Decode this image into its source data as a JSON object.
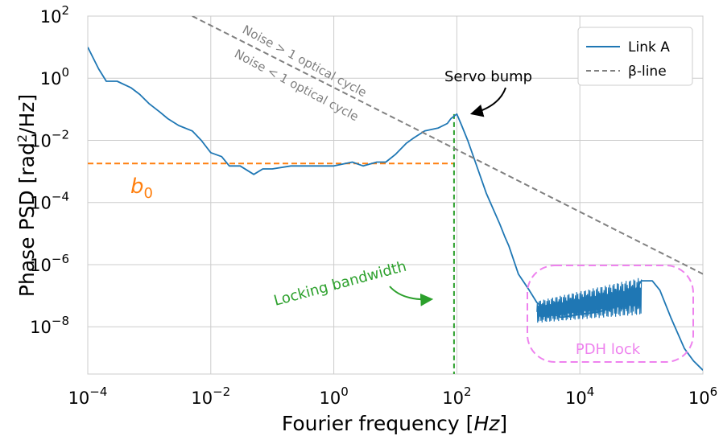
{
  "chart_data": {
    "type": "line",
    "xlabel": "Fourier frequency [Hz]",
    "ylabel": "Phase PSD [rad²/Hz]",
    "xscale": "log",
    "yscale": "log",
    "xlim": [
      0.0001,
      1000000
    ],
    "ylim": [
      3e-10,
      100
    ],
    "grid": true,
    "x_ticks": [
      {
        "base": "10",
        "exp": "−4"
      },
      {
        "base": "10",
        "exp": "−2"
      },
      {
        "base": "10",
        "exp": "0"
      },
      {
        "base": "10",
        "exp": "2"
      },
      {
        "base": "10",
        "exp": "4"
      },
      {
        "base": "10",
        "exp": "6"
      }
    ],
    "x_tick_values": [
      0.0001,
      0.01,
      1,
      100,
      10000,
      1000000
    ],
    "y_ticks": [
      {
        "base": "10",
        "exp": "2"
      },
      {
        "base": "10",
        "exp": "0"
      },
      {
        "base": "10",
        "exp": "−2"
      },
      {
        "base": "10",
        "exp": "−4"
      },
      {
        "base": "10",
        "exp": "−6"
      },
      {
        "base": "10",
        "exp": "−8"
      }
    ],
    "y_tick_values": [
      100,
      1,
      0.01,
      0.0001,
      1e-06,
      1e-08
    ],
    "legend": {
      "placement": "top-right",
      "entries": [
        {
          "label": "Link A",
          "style": "solid",
          "color": "#1f77b4"
        },
        {
          "label": "β-line",
          "style": "dashed",
          "color": "#808080"
        }
      ]
    },
    "series": [
      {
        "name": "Link A",
        "color": "#1f77b4",
        "x": [
          0.0001,
          0.00015,
          0.0002,
          0.0003,
          0.0005,
          0.0007,
          0.001,
          0.0015,
          0.002,
          0.003,
          0.005,
          0.007,
          0.01,
          0.015,
          0.02,
          0.03,
          0.05,
          0.07,
          0.1,
          0.2,
          0.5,
          1,
          2,
          3,
          5,
          7,
          10,
          15,
          20,
          30,
          50,
          70,
          80,
          90,
          100,
          120,
          150,
          200,
          300,
          500,
          600,
          700,
          1000,
          1500,
          2000,
          3000,
          5000,
          10000,
          20000,
          50000,
          70000,
          100000,
          150000,
          200000,
          300000,
          500000,
          700000,
          1000000
        ],
        "y": [
          10,
          2,
          0.8,
          0.8,
          0.5,
          0.3,
          0.15,
          0.08,
          0.05,
          0.03,
          0.02,
          0.01,
          0.004,
          0.003,
          0.0015,
          0.0015,
          0.0008,
          0.0012,
          0.0012,
          0.0015,
          0.0015,
          0.0015,
          0.002,
          0.0015,
          0.002,
          0.002,
          0.0035,
          0.008,
          0.012,
          0.02,
          0.025,
          0.035,
          0.05,
          0.06,
          0.07,
          0.03,
          0.01,
          0.002,
          0.0002,
          2e-05,
          8e-06,
          4e-06,
          5e-07,
          1.5e-07,
          6e-08,
          3e-08,
          2e-08,
          2.5e-08,
          3e-08,
          5e-08,
          1e-07,
          3e-07,
          3e-07,
          1.5e-07,
          2e-08,
          2e-09,
          8e-10,
          4e-10
        ]
      },
      {
        "name": "β-line",
        "color": "#808080",
        "style": "dashed",
        "x": [
          0.005,
          1000000
        ],
        "y": [
          100,
          5e-07
        ]
      }
    ],
    "reference_lines": {
      "b0_level": 0.0018,
      "b0_x_range": [
        0.0001,
        90
      ],
      "locking_bandwidth_x": 90
    },
    "annotations": {
      "noise_above": "Noise > 1 optical cycle",
      "noise_below": "Noise < 1 optical cycle",
      "servo_bump": "Servo bump",
      "b0_base": "b",
      "b0_sub": "0",
      "locking_bandwidth": "Locking bandwidth",
      "pdh_lock": "PDH lock"
    },
    "colors": {
      "link_a": "#1f77b4",
      "beta_line": "#808080",
      "b0": "#ff7f0e",
      "locking": "#2ca02c",
      "pdh": "#ee82ee",
      "grid": "#cccccc"
    }
  }
}
